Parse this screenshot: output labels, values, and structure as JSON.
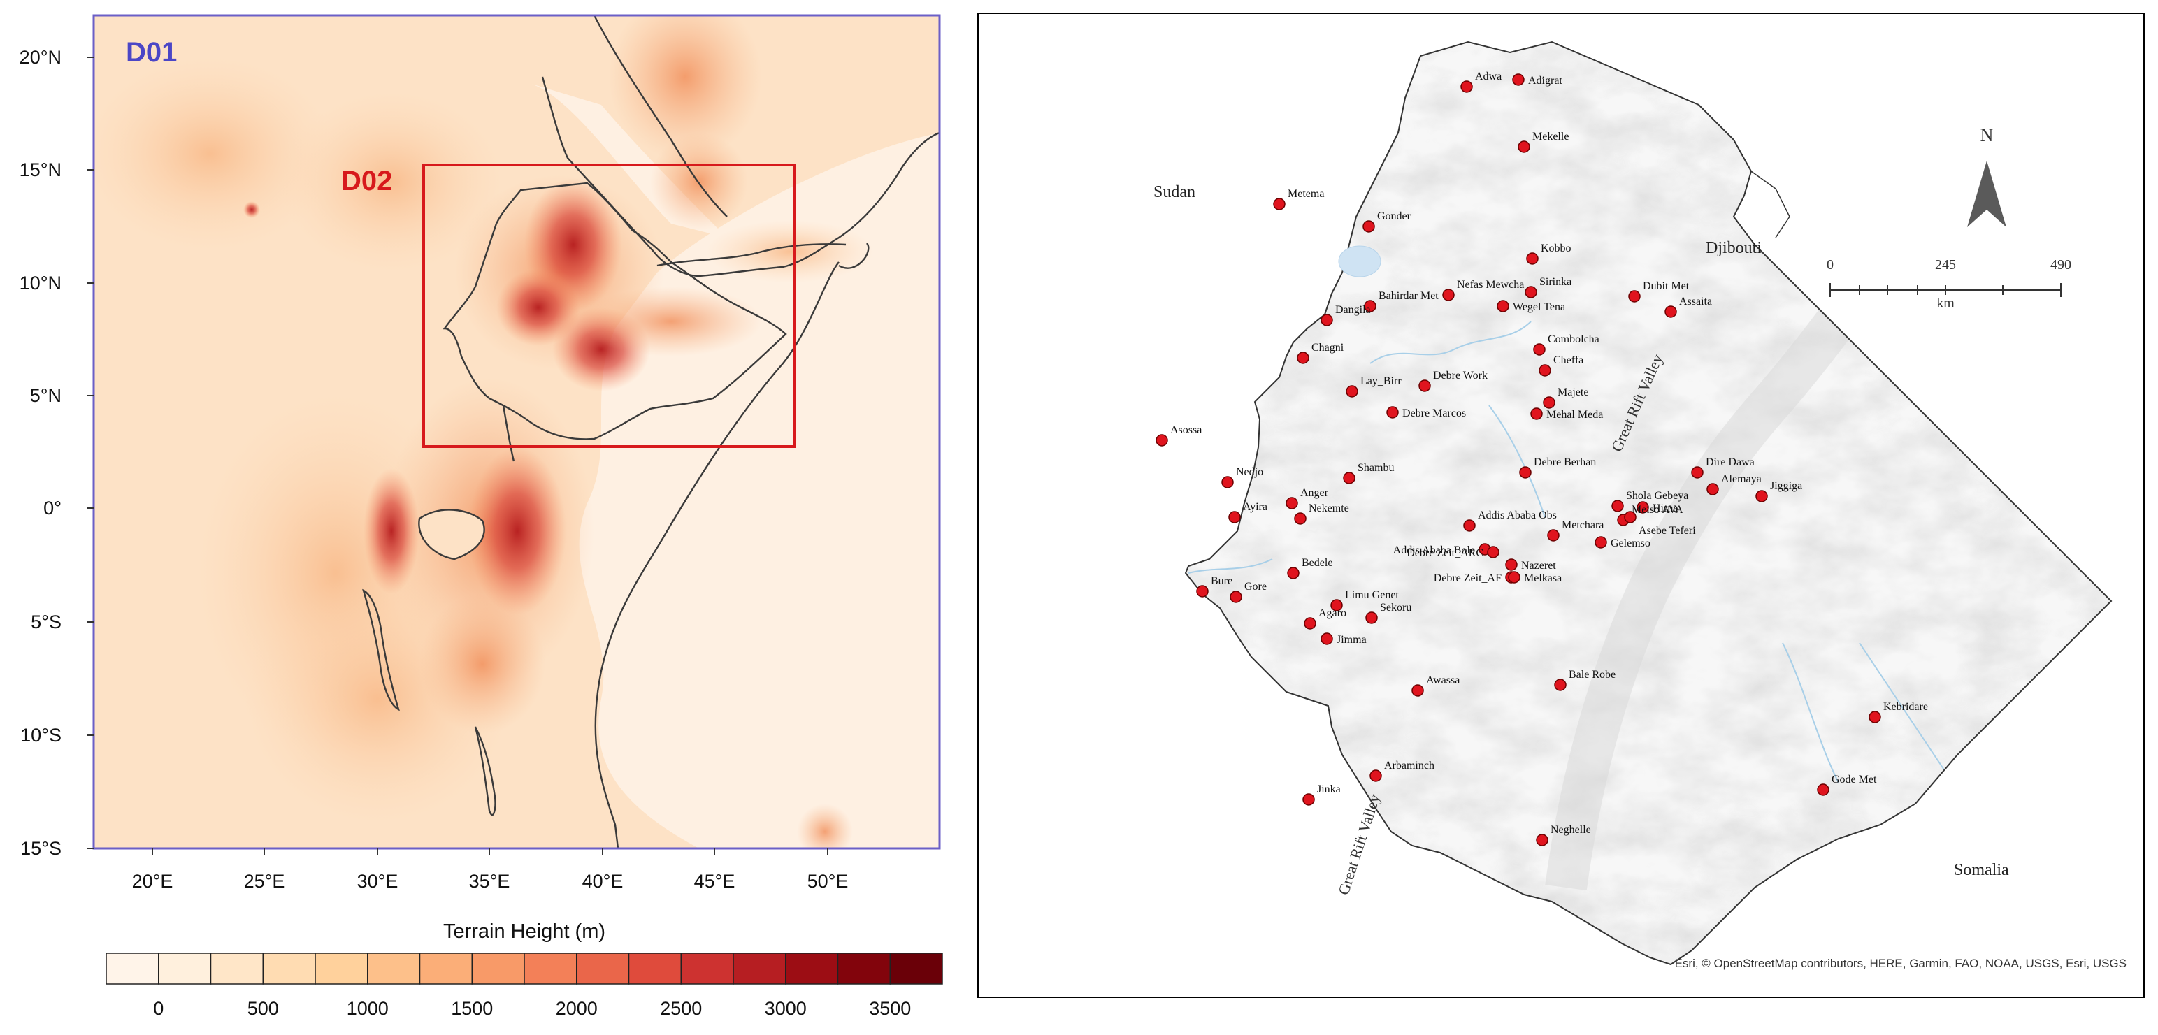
{
  "left_map": {
    "domain_labels": {
      "d01": "D01",
      "d02": "D02"
    },
    "lat_ticks": [
      "20°N",
      "15°N",
      "10°N",
      "5°N",
      "0°",
      "5°S",
      "10°S",
      "15°S"
    ],
    "lon_ticks": [
      "20°E",
      "25°E",
      "30°E",
      "35°E",
      "40°E",
      "45°E",
      "50°E"
    ],
    "legend": {
      "title": "Terrain Height  (m)",
      "labels": [
        "0",
        "500",
        "1000",
        "1500",
        "2000",
        "2500",
        "3000",
        "3500"
      ],
      "colors": [
        "#fff4e9",
        "#fff0dd",
        "#ffe6c8",
        "#ffdcb2",
        "#ffd19c",
        "#fdc08a",
        "#fbae78",
        "#f89a68",
        "#f38058",
        "#ea664a",
        "#df4b3c",
        "#cd3230",
        "#b61e22",
        "#9c0d14",
        "#82040c",
        "#6a0008"
      ]
    },
    "colors": {
      "frame": "#6b5fc7",
      "d02_box": "#d7191c",
      "d01_label": "#4b46c6",
      "d02_label": "#d7191c"
    }
  },
  "right_map": {
    "country_labels": {
      "sudan": "Sudan",
      "djibouti": "Djibouti",
      "somalia": "Somalia"
    },
    "rift_labels": [
      "Great Rift Valley",
      "Great Rift Valley"
    ],
    "north_arrow": "N",
    "scale_bar": {
      "labels": [
        "0",
        "245",
        "490"
      ],
      "unit": "km"
    },
    "attribution": "Esri, © OpenStreetMap contributors, HERE, Garmin, FAO, NOAA, USGS, Esri, USGS",
    "marker_color": "#e0141e",
    "stations": [
      "Adwa",
      "Adigrat",
      "Mekelle",
      "Metema",
      "Gonder",
      "Kobbo",
      "Sirinka",
      "Nefas Mewcha",
      "Bahirdar Met",
      "Dangila",
      "Wegel Tena",
      "Dubit Met",
      "Assaita",
      "Combolcha",
      "Cheffa",
      "Chagni",
      "Debre Work",
      "Lay_Birr",
      "Majete",
      "Debre Marcos",
      "Mehal Meda",
      "Asossa",
      "Shambu",
      "Debre Berhan",
      "Dire Dawa",
      "Alemaya",
      "Jiggiga",
      "Nedjo",
      "Anger",
      "Addis Ababa Obs",
      "Shola Gebeya",
      "Hirna",
      "Ayira",
      "Nekemte",
      "Meiso AVA",
      "Metchara",
      "Asebe Teferi",
      "Addis Ababa Bole",
      "Debre Zeit_ARC",
      "Gelemso",
      "Nazeret",
      "Debre Zeit_AF",
      "Bedele",
      "Melkasa",
      "Bure",
      "Gore",
      "Limu Genet",
      "Sekoru",
      "Agaro",
      "Jimma",
      "Awassa",
      "Bale Robe",
      "Kebridare",
      "Arbaminch",
      "Gode Met",
      "Jinka",
      "Neghelle"
    ]
  }
}
